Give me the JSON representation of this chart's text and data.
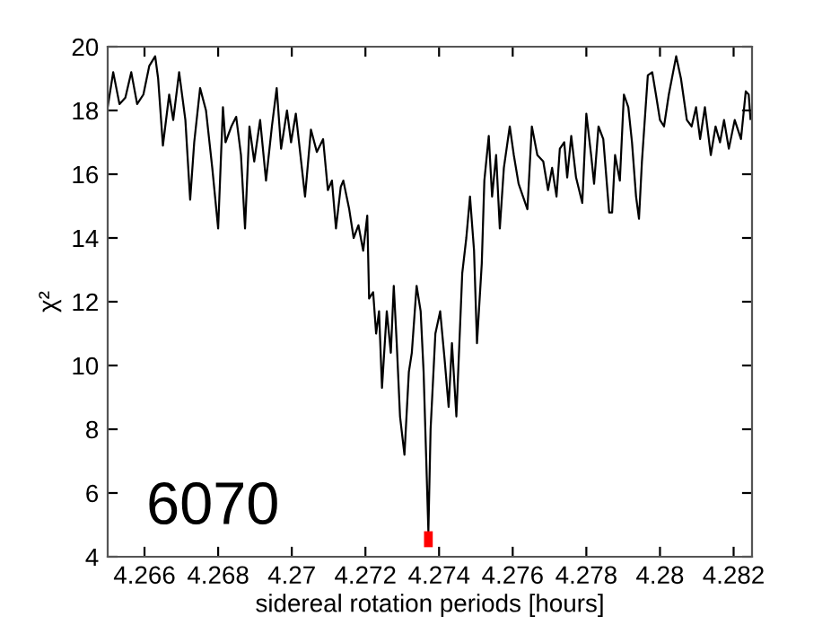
{
  "chart_data": {
    "type": "line",
    "xlabel": "sidereal rotation periods [hours]",
    "ylabel": "χ²",
    "annotations": [
      "6070"
    ],
    "xlim": [
      4.265,
      4.2825
    ],
    "ylim": [
      4,
      20
    ],
    "xticks": [
      4.266,
      4.268,
      4.27,
      4.272,
      4.274,
      4.276,
      4.278,
      4.28,
      4.282
    ],
    "yticks": [
      4,
      6,
      8,
      10,
      12,
      14,
      16,
      18,
      20
    ],
    "grid": false,
    "legend": false,
    "series": [
      {
        "color": "#000000",
        "x": [
          4.265,
          4.26515,
          4.26532,
          4.26548,
          4.26564,
          4.2658,
          4.26597,
          4.26613,
          4.26629,
          4.26637,
          4.2665,
          4.26667,
          4.26678,
          4.26694,
          4.26711,
          4.26724,
          4.26735,
          4.26751,
          4.26767,
          4.26784,
          4.268,
          4.26813,
          4.2682,
          4.26836,
          4.26849,
          4.26862,
          4.26873,
          4.26885,
          4.26898,
          4.26914,
          4.2693,
          4.26946,
          4.26959,
          4.26971,
          4.26987,
          4.26998,
          4.27011,
          4.27036,
          4.27052,
          4.27068,
          4.27085,
          4.27098,
          4.27109,
          4.2712,
          4.27133,
          4.2714,
          4.27156,
          4.27168,
          4.27181,
          4.27194,
          4.27205,
          4.2721,
          4.27221,
          4.27229,
          4.27237,
          4.27245,
          4.27258,
          4.27269,
          4.27277,
          4.27285,
          4.27294,
          4.27306,
          4.27318,
          4.27326,
          4.27339,
          4.2735,
          4.27358,
          4.27371,
          4.27377,
          4.2739,
          4.27403,
          4.27415,
          4.27426,
          4.27435,
          4.27447,
          4.27463,
          4.27474,
          4.27484,
          4.27495,
          4.27503,
          4.27516,
          4.27523,
          4.27535,
          4.27544,
          4.27555,
          4.27565,
          4.27576,
          4.27592,
          4.27603,
          4.27616,
          4.2764,
          4.27652,
          4.27667,
          4.27683,
          4.27696,
          4.27707,
          4.27719,
          4.27728,
          4.2774,
          4.27748,
          4.27759,
          4.27772,
          4.27789,
          4.278,
          4.27813,
          4.27821,
          4.27833,
          4.27846,
          4.27862,
          4.2787,
          4.27878,
          4.27891,
          4.27902,
          4.27914,
          4.27924,
          4.27935,
          4.27943,
          4.27951,
          4.27967,
          4.27979,
          4.27989,
          4.28,
          4.28011,
          4.28024,
          4.28044,
          4.28057,
          4.28073,
          4.28086,
          4.28098,
          4.28109,
          4.28122,
          4.28138,
          4.28151,
          4.28163,
          4.28174,
          4.28187,
          4.28203,
          4.2822,
          4.28233,
          4.28241,
          4.28246
        ],
        "values": [
          18.1,
          19.2,
          18.2,
          18.4,
          19.2,
          18.2,
          18.5,
          19.4,
          19.7,
          19.0,
          16.9,
          18.5,
          17.7,
          19.2,
          17.7,
          15.2,
          17.0,
          18.7,
          18.0,
          16.2,
          14.3,
          18.1,
          17.0,
          17.5,
          17.8,
          16.6,
          14.3,
          17.5,
          16.4,
          17.7,
          15.8,
          17.5,
          18.7,
          16.8,
          18.0,
          17.0,
          17.9,
          15.3,
          17.4,
          16.7,
          17.1,
          15.5,
          15.8,
          14.3,
          15.6,
          15.8,
          14.9,
          14.0,
          14.4,
          13.6,
          14.7,
          12.1,
          12.3,
          11.0,
          11.7,
          9.3,
          11.7,
          10.4,
          12.5,
          10.7,
          8.4,
          7.2,
          9.8,
          10.4,
          12.5,
          11.7,
          9.8,
          4.8,
          8.0,
          11.0,
          11.7,
          10.2,
          8.7,
          10.7,
          8.4,
          12.9,
          14.0,
          15.3,
          13.6,
          10.7,
          13.2,
          15.8,
          17.2,
          15.3,
          16.6,
          14.3,
          16.2,
          17.5,
          16.6,
          15.7,
          14.9,
          17.5,
          16.6,
          16.4,
          15.5,
          16.2,
          15.3,
          16.8,
          17.0,
          15.9,
          17.2,
          15.9,
          15.1,
          17.9,
          16.6,
          15.7,
          17.5,
          17.1,
          14.8,
          14.8,
          16.6,
          15.8,
          18.5,
          18.1,
          17.0,
          15.3,
          14.6,
          16.4,
          19.1,
          19.2,
          18.5,
          17.7,
          17.5,
          18.5,
          19.7,
          19.0,
          17.7,
          17.5,
          18.1,
          17.1,
          18.1,
          16.6,
          17.5,
          17.0,
          17.7,
          16.8,
          17.7,
          17.1,
          18.6,
          18.5,
          17.7
        ]
      },
      {
        "color": "#ff0000",
        "x": [
          4.27371,
          4.27371
        ],
        "values": [
          4.3,
          4.8
        ]
      }
    ]
  }
}
